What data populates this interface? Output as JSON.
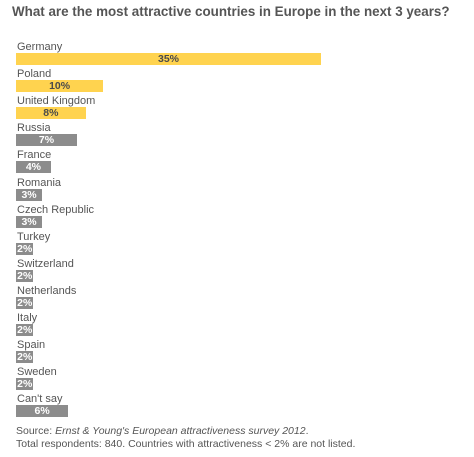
{
  "chart_data": {
    "type": "bar",
    "orientation": "horizontal",
    "title": "What are the most attractive countries in Europe in the next 3 years?",
    "categories": [
      "Germany",
      "Poland",
      "United Kingdom",
      "Russia",
      "France",
      "Romania",
      "Czech Republic",
      "Turkey",
      "Switzerland",
      "Netherlands",
      "Italy",
      "Spain",
      "Sweden",
      "Can't say"
    ],
    "values": [
      35,
      10,
      8,
      7,
      4,
      3,
      3,
      2,
      2,
      2,
      2,
      2,
      2,
      6
    ],
    "value_labels": [
      "35%",
      "10%",
      "8%",
      "7%",
      "4%",
      "3%",
      "3%",
      "2%",
      "2%",
      "2%",
      "2%",
      "2%",
      "2%",
      "6%"
    ],
    "highlight_count": 3,
    "colors": {
      "highlight": "#ffd34f",
      "default": "#8c8c8c"
    },
    "xlim": [
      0,
      35
    ],
    "grid": false,
    "legend": "none"
  },
  "source": {
    "prefix": "Source: ",
    "italic": "Ernst & Young's European attractiveness survey 2012",
    "suffix": ".",
    "note": "Total respondents: 840. Countries with attractiveness < 2% are not listed."
  }
}
